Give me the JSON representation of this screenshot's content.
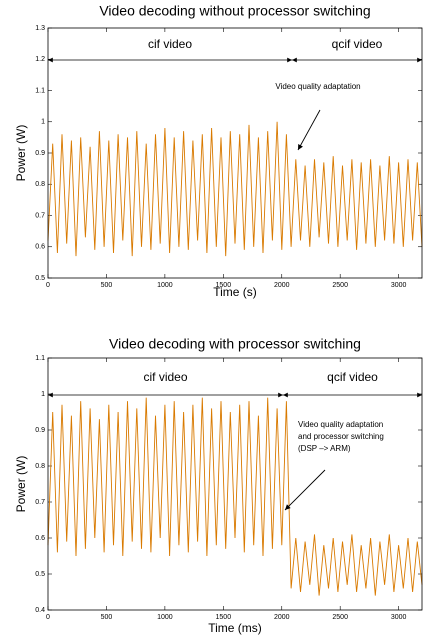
{
  "chart_data": [
    {
      "type": "line",
      "title": "Video decoding without processor switching",
      "x_label": "Time (s)",
      "y_label": "Power (W)",
      "color": "#d97a00",
      "xlim": [
        0,
        3200
      ],
      "ylim": [
        0.5,
        1.3
      ],
      "xticks": [
        0,
        500,
        1000,
        1500,
        2000,
        2500,
        3000
      ],
      "yticks": [
        0.5,
        0.6,
        0.7,
        0.8,
        0.9,
        1,
        1.1,
        1.2,
        1.3
      ],
      "segments": [
        "cif video",
        "qcif video"
      ],
      "note": [
        "Video quality adaptation"
      ],
      "x": [
        0,
        40,
        80,
        120,
        160,
        200,
        240,
        280,
        320,
        360,
        400,
        440,
        480,
        520,
        560,
        600,
        640,
        680,
        720,
        760,
        800,
        840,
        880,
        920,
        960,
        1000,
        1040,
        1080,
        1120,
        1160,
        1200,
        1240,
        1280,
        1320,
        1360,
        1400,
        1440,
        1480,
        1520,
        1560,
        1600,
        1640,
        1680,
        1720,
        1760,
        1800,
        1840,
        1880,
        1920,
        1960,
        2000,
        2040,
        2080,
        2120,
        2160,
        2200,
        2240,
        2280,
        2320,
        2360,
        2400,
        2440,
        2480,
        2520,
        2560,
        2600,
        2640,
        2680,
        2720,
        2760,
        2800,
        2840,
        2880,
        2920,
        2960,
        3000,
        3040,
        3080,
        3120,
        3160,
        3200
      ],
      "values": [
        0.62,
        0.93,
        0.58,
        0.96,
        0.61,
        0.94,
        0.57,
        0.95,
        0.63,
        0.92,
        0.59,
        0.97,
        0.6,
        0.94,
        0.58,
        0.96,
        0.62,
        0.95,
        0.57,
        0.97,
        0.6,
        0.93,
        0.59,
        0.96,
        0.61,
        0.98,
        0.58,
        0.95,
        0.6,
        0.97,
        0.59,
        0.94,
        0.62,
        0.96,
        0.58,
        0.98,
        0.6,
        0.95,
        0.57,
        0.97,
        0.61,
        0.96,
        0.59,
        0.99,
        0.6,
        0.95,
        0.58,
        0.97,
        0.62,
        1.0,
        0.59,
        0.96,
        0.6,
        0.88,
        0.62,
        0.86,
        0.6,
        0.88,
        0.63,
        0.87,
        0.61,
        0.89,
        0.6,
        0.86,
        0.62,
        0.88,
        0.59,
        0.87,
        0.61,
        0.88,
        0.6,
        0.86,
        0.62,
        0.89,
        0.61,
        0.87,
        0.6,
        0.88,
        0.62,
        0.87,
        0.6
      ]
    },
    {
      "type": "line",
      "title": "Video decoding with processor switching",
      "x_label": "Time (ms)",
      "y_label": "Power (W)",
      "color": "#d97a00",
      "xlim": [
        0,
        3200
      ],
      "ylim": [
        0.4,
        1.1
      ],
      "xticks": [
        0,
        500,
        1000,
        1500,
        2000,
        2500,
        3000
      ],
      "yticks": [
        0.4,
        0.5,
        0.6,
        0.7,
        0.8,
        0.9,
        1,
        1.1
      ],
      "segments": [
        "cif video",
        "qcif video"
      ],
      "note": [
        "Video quality adaptation",
        "and processor switching",
        "(DSP –> ARM)"
      ],
      "x": [
        0,
        40,
        80,
        120,
        160,
        200,
        240,
        280,
        320,
        360,
        400,
        440,
        480,
        520,
        560,
        600,
        640,
        680,
        720,
        760,
        800,
        840,
        880,
        920,
        960,
        1000,
        1040,
        1080,
        1120,
        1160,
        1200,
        1240,
        1280,
        1320,
        1360,
        1400,
        1440,
        1480,
        1520,
        1560,
        1600,
        1640,
        1680,
        1720,
        1760,
        1800,
        1840,
        1880,
        1920,
        1960,
        2000,
        2040,
        2080,
        2120,
        2160,
        2200,
        2240,
        2280,
        2320,
        2360,
        2400,
        2440,
        2480,
        2520,
        2560,
        2600,
        2640,
        2680,
        2720,
        2760,
        2800,
        2840,
        2880,
        2920,
        2960,
        3000,
        3040,
        3080,
        3120,
        3160,
        3200
      ],
      "values": [
        0.58,
        0.95,
        0.56,
        0.97,
        0.59,
        0.94,
        0.55,
        0.98,
        0.57,
        0.96,
        0.6,
        0.93,
        0.56,
        0.97,
        0.58,
        0.95,
        0.55,
        0.98,
        0.59,
        0.96,
        0.57,
        0.99,
        0.56,
        0.94,
        0.6,
        0.97,
        0.55,
        0.98,
        0.58,
        0.95,
        0.56,
        0.97,
        0.59,
        0.99,
        0.55,
        0.96,
        0.58,
        0.98,
        0.57,
        0.95,
        0.6,
        0.97,
        0.56,
        0.98,
        0.58,
        0.94,
        0.55,
        0.99,
        0.57,
        0.96,
        0.58,
        0.98,
        0.46,
        0.6,
        0.45,
        0.59,
        0.47,
        0.61,
        0.44,
        0.58,
        0.46,
        0.6,
        0.45,
        0.59,
        0.47,
        0.61,
        0.45,
        0.58,
        0.46,
        0.6,
        0.44,
        0.59,
        0.47,
        0.61,
        0.45,
        0.58,
        0.46,
        0.6,
        0.45,
        0.59,
        0.47
      ]
    }
  ]
}
